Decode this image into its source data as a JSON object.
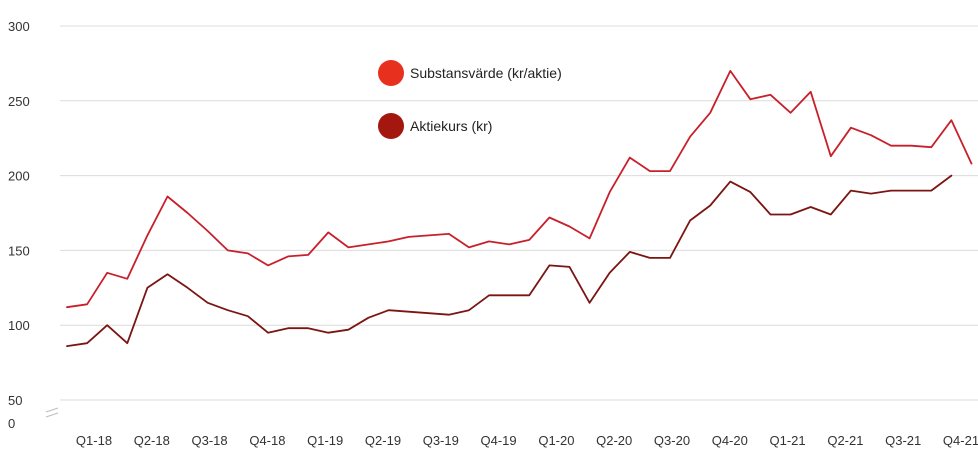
{
  "chart_data": {
    "type": "line",
    "title": "",
    "xlabel": "",
    "ylabel": "",
    "ylim": [
      0,
      300
    ],
    "y_axis_break": true,
    "grid": "horizontal",
    "legend_position": "top-center",
    "y_ticks": [
      0,
      50,
      100,
      150,
      200,
      250,
      300
    ],
    "x_tick_labels": [
      "Q1-18",
      "Q2-18",
      "Q3-18",
      "Q4-18",
      "Q1-19",
      "Q2-19",
      "Q3-19",
      "Q4-19",
      "Q1-20",
      "Q2-20",
      "Q3-20",
      "Q4-20",
      "Q1-21",
      "Q2-21",
      "Q3-21",
      "Q4-21"
    ],
    "colors": {
      "nav": "#c8202b",
      "price": "#7a1512",
      "nav_marker": "#e8301e",
      "price_marker": "#a3170f"
    },
    "series": [
      {
        "name": "Substansvärde (kr/aktie)",
        "values": [
          112,
          114,
          135,
          131,
          160,
          186,
          175,
          163,
          150,
          148,
          140,
          146,
          147,
          162,
          152,
          154,
          156,
          159,
          160,
          161,
          152,
          156,
          154,
          157,
          172,
          166,
          158,
          189,
          212,
          203,
          203,
          226,
          242,
          270,
          251,
          254,
          242,
          256,
          213,
          232,
          227,
          220,
          220,
          219,
          237,
          208
        ]
      },
      {
        "name": "Aktiekurs (kr)",
        "values": [
          86,
          88,
          100,
          88,
          125,
          134,
          125,
          115,
          110,
          106,
          95,
          98,
          98,
          95,
          97,
          105,
          110,
          109,
          108,
          107,
          110,
          120,
          120,
          120,
          140,
          139,
          115,
          135,
          149,
          145,
          145,
          170,
          180,
          196,
          189,
          174,
          174,
          179,
          174,
          190,
          188,
          190,
          190,
          190,
          200
        ]
      }
    ]
  }
}
